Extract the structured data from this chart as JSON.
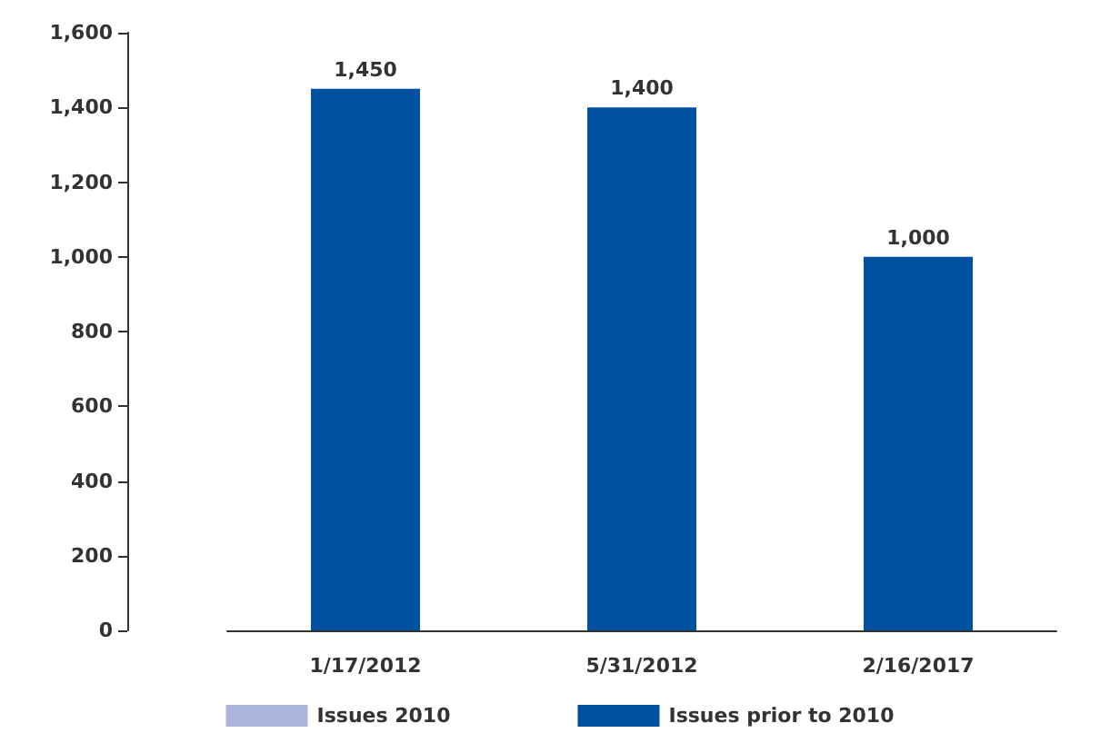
{
  "chart_data": {
    "type": "bar",
    "categories": [
      "1/17/2012",
      "5/31/2012",
      "2/16/2017"
    ],
    "stacked": true,
    "series": [
      {
        "name": "Issues 2010",
        "color": "#abb5db",
        "values": [
          null,
          null,
          null
        ]
      },
      {
        "name": "Issues prior to 2010",
        "color": "#0052a0",
        "values": [
          1450,
          1400,
          1000
        ],
        "value_labels": [
          "1,450",
          "1,400",
          "1,000"
        ]
      }
    ],
    "ylim": [
      0,
      1600
    ],
    "yticks": [
      0,
      200,
      400,
      600,
      800,
      {
        "value": 1000,
        "label": "1,000"
      },
      {
        "value": 1200,
        "label": "1,200"
      },
      {
        "value": 1400,
        "label": "1,400"
      },
      {
        "value": 1600,
        "label": "1,600"
      }
    ],
    "grid": false,
    "legend": "bottom"
  }
}
